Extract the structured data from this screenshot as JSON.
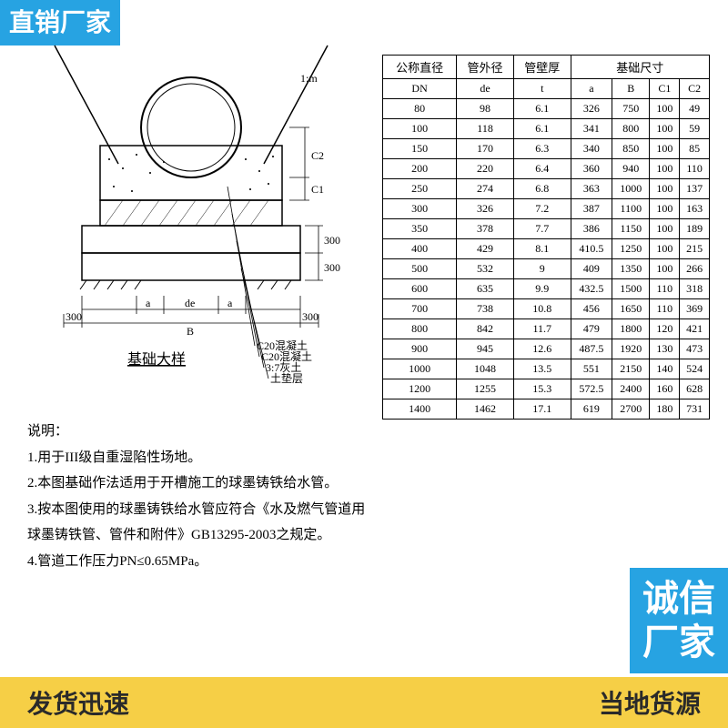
{
  "badges": {
    "top_left": "直销厂家",
    "bottom_right": "诚信\n厂家"
  },
  "bottom_bar": {
    "left": "发货迅速",
    "right": "当地货源"
  },
  "diagram": {
    "title": "基础大样",
    "labels": {
      "slope": "1:m",
      "C2": "C2",
      "C1": "C1",
      "h1": "300",
      "h2": "300",
      "a_left": "a",
      "de": "de",
      "a_right": "a",
      "B": "B",
      "margin_left": "300",
      "margin_right": "300",
      "mat1": "C20混凝土",
      "mat2": "C20混凝土",
      "mat3": "3:7灰土",
      "mat4": "土垫层"
    },
    "colors": {
      "line": "#000000",
      "fill_bg": "#ffffff"
    }
  },
  "notes": {
    "heading": "说明：",
    "items": [
      "1.用于III级自重湿陷性场地。",
      "2.本图基础作法适用于开槽施工的球墨铸铁给水管。",
      "3.按本图使用的球墨铸铁给水管应符合《水及燃气管道用球墨铸铁管、管件和附件》GB13295-2003之规定。",
      "4.管道工作压力PN≤0.65MPa。"
    ]
  },
  "table": {
    "headers": {
      "col1": "公称直径",
      "col2": "管外径",
      "col3": "管壁厚",
      "group": "基础尺寸",
      "sub1": "DN",
      "sub2": "de",
      "sub3": "t",
      "sub4": "a",
      "sub5": "B",
      "sub6": "C1",
      "sub7": "C2"
    },
    "rows": [
      [
        "80",
        "98",
        "6.1",
        "326",
        "750",
        "100",
        "49"
      ],
      [
        "100",
        "118",
        "6.1",
        "341",
        "800",
        "100",
        "59"
      ],
      [
        "150",
        "170",
        "6.3",
        "340",
        "850",
        "100",
        "85"
      ],
      [
        "200",
        "220",
        "6.4",
        "360",
        "940",
        "100",
        "110"
      ],
      [
        "250",
        "274",
        "6.8",
        "363",
        "1000",
        "100",
        "137"
      ],
      [
        "300",
        "326",
        "7.2",
        "387",
        "1100",
        "100",
        "163"
      ],
      [
        "350",
        "378",
        "7.7",
        "386",
        "1150",
        "100",
        "189"
      ],
      [
        "400",
        "429",
        "8.1",
        "410.5",
        "1250",
        "100",
        "215"
      ],
      [
        "500",
        "532",
        "9",
        "409",
        "1350",
        "100",
        "266"
      ],
      [
        "600",
        "635",
        "9.9",
        "432.5",
        "1500",
        "110",
        "318"
      ],
      [
        "700",
        "738",
        "10.8",
        "456",
        "1650",
        "110",
        "369"
      ],
      [
        "800",
        "842",
        "11.7",
        "479",
        "1800",
        "120",
        "421"
      ],
      [
        "900",
        "945",
        "12.6",
        "487.5",
        "1920",
        "130",
        "473"
      ],
      [
        "1000",
        "1048",
        "13.5",
        "551",
        "2150",
        "140",
        "524"
      ],
      [
        "1200",
        "1255",
        "15.3",
        "572.5",
        "2400",
        "160",
        "628"
      ],
      [
        "1400",
        "1462",
        "17.1",
        "619",
        "2700",
        "180",
        "731"
      ]
    ]
  }
}
